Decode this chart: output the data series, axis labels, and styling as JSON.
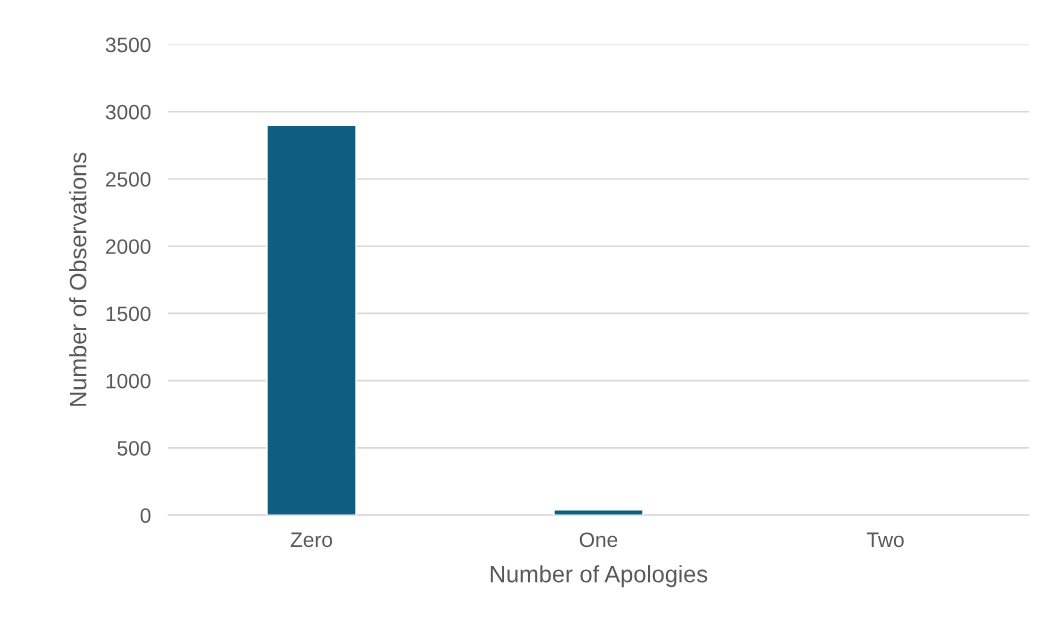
{
  "chart_data": {
    "type": "bar",
    "xlabel": "Number of Apologies",
    "ylabel": "Number of Observations",
    "categories": [
      "Zero",
      "One",
      "Two"
    ],
    "series": [
      {
        "color": "#0f5e82",
        "values": [
          2900,
          40,
          null
        ]
      }
    ],
    "ylim": [
      0,
      3500
    ],
    "yticks": [
      0,
      500,
      1000,
      1500,
      2000,
      2500,
      3000,
      3500
    ],
    "grid": "y",
    "legend": false
  }
}
